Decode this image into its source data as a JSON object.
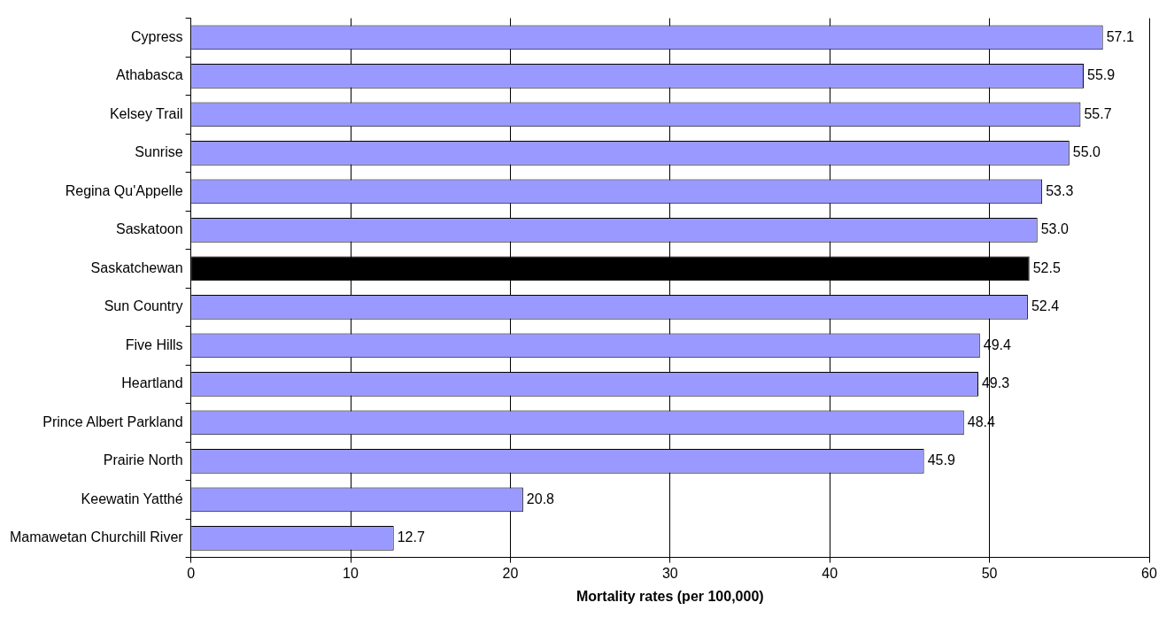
{
  "chart_data": {
    "type": "bar",
    "orientation": "horizontal",
    "xlabel": "Mortality rates (per 100,000)",
    "categories": [
      "Cypress",
      "Athabasca",
      "Kelsey Trail",
      "Sunrise",
      "Regina Qu'Appelle",
      "Saskatoon",
      "Saskatchewan",
      "Sun Country",
      "Five Hills",
      "Heartland",
      "Prince Albert Parkland",
      "Prairie North",
      "Keewatin Yatthé",
      "Mamawetan Churchill River"
    ],
    "values": [
      57.1,
      55.9,
      55.7,
      55.0,
      53.3,
      53.0,
      52.5,
      52.4,
      49.4,
      49.3,
      48.4,
      45.9,
      20.8,
      12.7
    ],
    "value_labels": [
      "57.1",
      "55.9",
      "55.7",
      "55.0",
      "53.3",
      "53.0",
      "52.5",
      "52.4",
      "49.4",
      "49.3",
      "48.4",
      "45.9",
      "20.8",
      "12.7"
    ],
    "colors": [
      "#9999ff",
      "#9999ff",
      "#9999ff",
      "#9999ff",
      "#9999ff",
      "#9999ff",
      "#000000",
      "#9999ff",
      "#9999ff",
      "#9999ff",
      "#9999ff",
      "#9999ff",
      "#9999ff",
      "#9999ff"
    ],
    "xlim": [
      0,
      60
    ],
    "xticks": [
      0,
      10,
      20,
      30,
      40,
      50,
      60
    ],
    "grid": "x",
    "legend": false
  }
}
